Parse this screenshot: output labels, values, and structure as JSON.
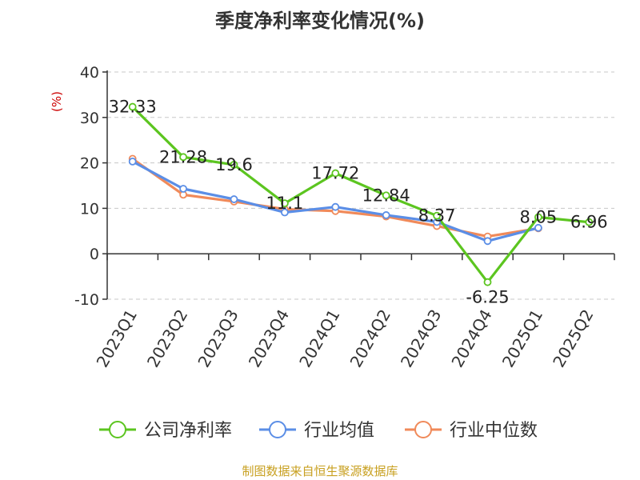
{
  "chart_data": {
    "type": "line",
    "title": "季度净利率变化情况(%)",
    "ylabel": "(%)",
    "xlabel": "",
    "ylim": [
      -10,
      40
    ],
    "yticks": [
      40,
      30,
      20,
      10,
      0,
      -10
    ],
    "grid": true,
    "legend_position": "bottom",
    "categories": [
      "2023Q1",
      "2023Q2",
      "2023Q3",
      "2023Q4",
      "2024Q1",
      "2024Q2",
      "2024Q3",
      "2024Q4",
      "2025Q1",
      "2025Q2"
    ],
    "series": [
      {
        "name": "公司净利率",
        "color": "#5cc520",
        "values": [
          32.33,
          21.28,
          19.6,
          11.1,
          17.72,
          12.84,
          8.37,
          -6.25,
          8.05,
          6.96
        ],
        "labels": [
          "32.33",
          "21.28",
          "19.6",
          "11.1",
          "17.72",
          "12.84",
          "8.37",
          "-6.25",
          "8.05",
          "6.96"
        ]
      },
      {
        "name": "行业均值",
        "color": "#5b8ee6",
        "values": [
          20.3,
          14.3,
          12.0,
          9.1,
          10.3,
          8.5,
          7.0,
          2.8,
          5.7,
          null
        ]
      },
      {
        "name": "行业中位数",
        "color": "#f08a5a",
        "values": [
          20.9,
          13.0,
          11.5,
          9.8,
          9.4,
          8.2,
          6.1,
          3.8,
          5.6,
          null
        ]
      }
    ]
  },
  "footer": {
    "source": "制图数据来自恒生聚源数据库"
  }
}
